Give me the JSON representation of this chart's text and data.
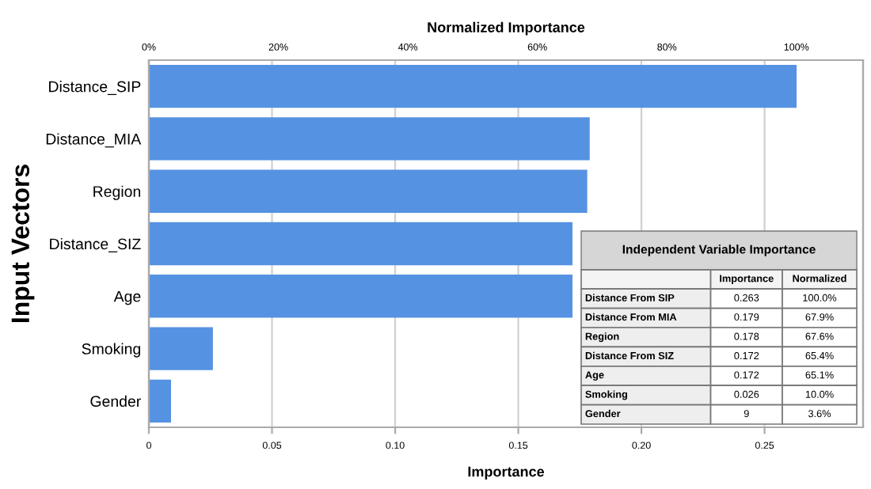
{
  "chart_data": [
    {
      "type": "bar",
      "orientation": "horizontal",
      "xlabel": "Importance",
      "ylabel": "Input Vectors",
      "x2label": "Normalized Importance",
      "categories": [
        "Distance_SIP",
        "Distance_MIA",
        "Region",
        "Distance_SIZ",
        "Age",
        "Smoking",
        "Gender"
      ],
      "values": [
        0.263,
        0.179,
        0.178,
        0.172,
        0.172,
        0.026,
        0.009
      ],
      "color": "#5592e2",
      "xlim": [
        0,
        0.29
      ],
      "xticks": [
        {
          "value": 0,
          "label": "0"
        },
        0.05,
        {
          "value": 0.1,
          "label": "0.10"
        },
        0.15,
        {
          "value": 0.2,
          "label": "0.20"
        },
        0.25
      ],
      "x2lim": [
        0,
        110.3
      ],
      "x2ticks": [
        {
          "value": 0,
          "label": "0%"
        },
        {
          "value": 20,
          "label": "20%"
        },
        {
          "value": 40,
          "label": "40%"
        },
        {
          "value": 60,
          "label": "60%"
        },
        {
          "value": 80,
          "label": "80%"
        },
        {
          "value": 100,
          "label": "100%"
        }
      ],
      "grid": "x"
    },
    {
      "type": "other",
      "title": "Independent Variable Importance",
      "data_labels": true,
      "categories": [
        "Distance From SIP",
        "Distance From MIA",
        "Region",
        "Distance From SIZ",
        "Age",
        "Smoking",
        "Gender"
      ],
      "series": [
        {
          "name": "Importance",
          "values": [
            0.263,
            0.179,
            0.178,
            0.172,
            0.172,
            0.026,
            9
          ]
        }
      ],
      "annotations": [
        "Normalized",
        "100.0%",
        "67.9%",
        "67.6%",
        "65.4%",
        "65.1%",
        "10.0%",
        "3.6%"
      ]
    }
  ]
}
